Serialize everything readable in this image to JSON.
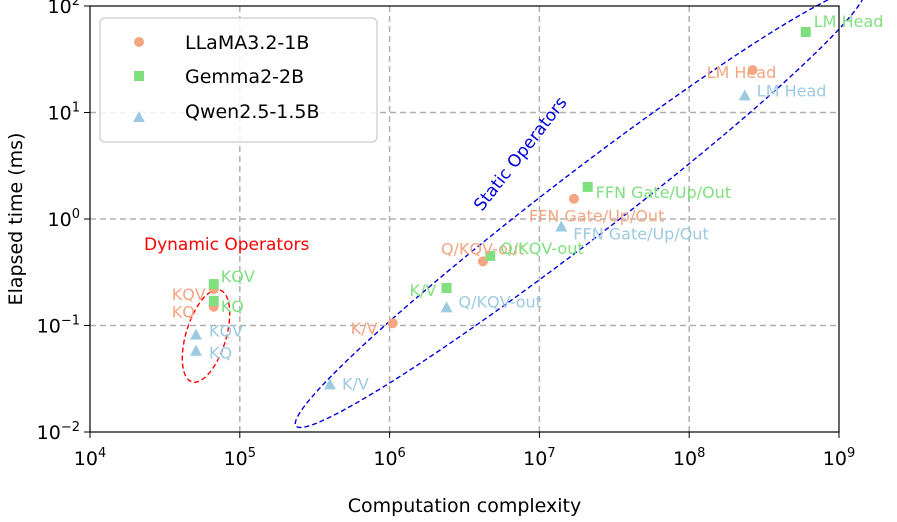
{
  "chart_data": {
    "type": "scatter",
    "xlabel": "Computation complexity",
    "ylabel": "Elapsed time (ms)",
    "xscale": "log",
    "yscale": "log",
    "xlim": [
      10000,
      1000000000
    ],
    "ylim": [
      0.01,
      100
    ],
    "grid": true,
    "legend_position": "top-left",
    "x_ticks": [
      {
        "value": 10000,
        "base": "10",
        "exp": "4"
      },
      {
        "value": 100000,
        "base": "10",
        "exp": "5"
      },
      {
        "value": 1000000,
        "base": "10",
        "exp": "6"
      },
      {
        "value": 10000000,
        "base": "10",
        "exp": "7"
      },
      {
        "value": 100000000,
        "base": "10",
        "exp": "8"
      },
      {
        "value": 1000000000,
        "base": "10",
        "exp": "9"
      }
    ],
    "y_ticks": [
      {
        "value": 0.01,
        "base": "10",
        "exp": "−2"
      },
      {
        "value": 0.1,
        "base": "10",
        "exp": "−1"
      },
      {
        "value": 1,
        "base": "10",
        "exp": "0"
      },
      {
        "value": 10,
        "base": "10",
        "exp": "1"
      },
      {
        "value": 100,
        "base": "10",
        "exp": "2"
      }
    ],
    "series": [
      {
        "name": "LLaMA3.2-1B",
        "marker": "circle",
        "color": "#f4a582",
        "points": [
          {
            "x": 67000,
            "y": 0.22,
            "label": "KQV"
          },
          {
            "x": 67000,
            "y": 0.15,
            "label": "KQ"
          },
          {
            "x": 1050000,
            "y": 0.105,
            "label": "K/V"
          },
          {
            "x": 4200000,
            "y": 0.4,
            "label": "Q/KQV-out"
          },
          {
            "x": 17000000,
            "y": 1.55,
            "label": "FFN Gate/Up/Out"
          },
          {
            "x": 265000000,
            "y": 25,
            "label": "LM Head"
          }
        ]
      },
      {
        "name": "Gemma2-2B",
        "marker": "square",
        "color": "#80e080",
        "points": [
          {
            "x": 67000,
            "y": 0.245,
            "label": "KQV"
          },
          {
            "x": 67000,
            "y": 0.17,
            "label": "KQ"
          },
          {
            "x": 2400000,
            "y": 0.225,
            "label": "K/V"
          },
          {
            "x": 4700000,
            "y": 0.45,
            "label": "Q/KQV-out"
          },
          {
            "x": 21000000,
            "y": 2.0,
            "label": "FFN Gate/Up/Out"
          },
          {
            "x": 600000000,
            "y": 57,
            "label": "LM Head"
          }
        ]
      },
      {
        "name": "Qwen2.5-1.5B",
        "marker": "triangle",
        "color": "#9ecae1",
        "points": [
          {
            "x": 51000,
            "y": 0.082,
            "label": "KQV"
          },
          {
            "x": 51000,
            "y": 0.058,
            "label": "KQ"
          },
          {
            "x": 400000,
            "y": 0.028,
            "label": "K/V"
          },
          {
            "x": 2400000,
            "y": 0.148,
            "label": "Q/KQV-out"
          },
          {
            "x": 14000000,
            "y": 0.85,
            "label": "FFN Gate/Up/Out"
          },
          {
            "x": 235000000,
            "y": 14.5,
            "label": "LM Head"
          }
        ]
      }
    ],
    "annotations": [
      {
        "text": "Dynamic Operators",
        "color": "#ff0000"
      },
      {
        "text": "Static Operators",
        "color": "#0000dd"
      }
    ]
  }
}
